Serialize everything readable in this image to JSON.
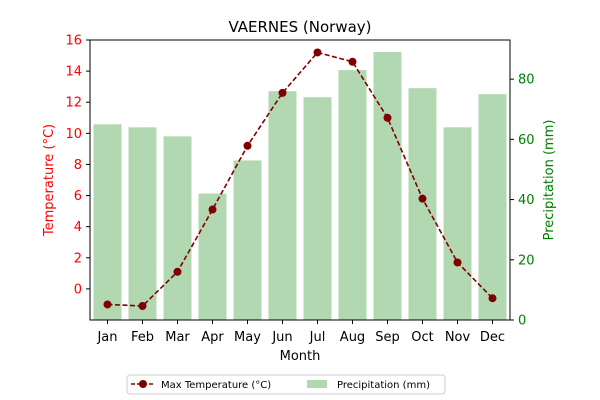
{
  "chart_data": {
    "type": "bar+line",
    "title": "VAERNES (Norway)",
    "xlabel": "Month",
    "categories": [
      "Jan",
      "Feb",
      "Mar",
      "Apr",
      "May",
      "Jun",
      "Jul",
      "Aug",
      "Sep",
      "Oct",
      "Nov",
      "Dec"
    ],
    "series": [
      {
        "name": "Max Temperature (°C)",
        "type": "line",
        "axis": "left",
        "values": [
          -1.0,
          -1.1,
          1.1,
          5.1,
          9.2,
          12.6,
          15.2,
          14.6,
          11.0,
          5.8,
          1.7,
          -0.6
        ]
      },
      {
        "name": "Precipitation (mm)",
        "type": "bar",
        "axis": "right",
        "values": [
          65,
          64,
          61,
          42,
          53,
          76,
          74,
          83,
          89,
          77,
          64,
          75
        ]
      }
    ],
    "y_left": {
      "label": "Temperature (°C)",
      "ylim": [
        -2,
        16
      ],
      "ticks": [
        0,
        2,
        4,
        6,
        8,
        10,
        12,
        14,
        16
      ]
    },
    "y_right": {
      "label": "Precipitation (mm)",
      "ylim": [
        0,
        93
      ],
      "ticks": [
        0,
        20,
        40,
        60,
        80
      ]
    },
    "grid": false,
    "legend_position": "bottom-center",
    "colors": {
      "temperature_line": "#800000",
      "temperature_axis": "#ff0000",
      "precip_bar": "#b2d8b2",
      "precip_axis": "#008000"
    }
  }
}
